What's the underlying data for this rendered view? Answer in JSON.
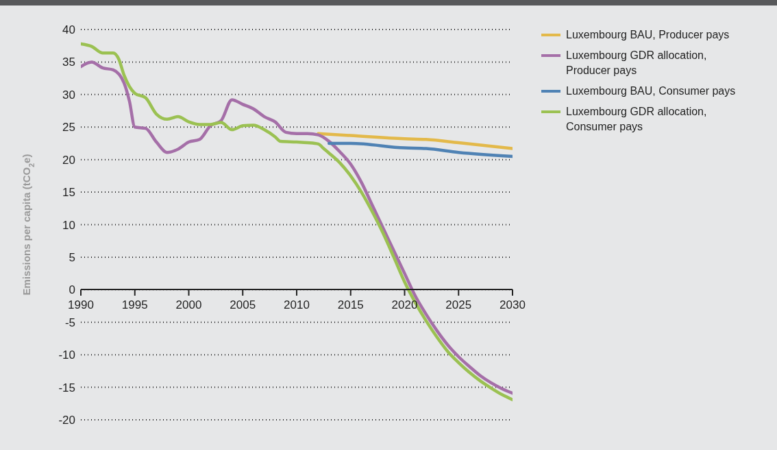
{
  "chart_data": {
    "type": "line",
    "ylabel": "Emissions per capita (tCO$_{2}$e)",
    "xlim": [
      1990,
      2030
    ],
    "xticks": [
      1990,
      1995,
      2000,
      2005,
      2010,
      2015,
      2020,
      2025,
      2030
    ],
    "ylim": [
      -20,
      40
    ],
    "yticks": [
      -20,
      -15,
      -10,
      -5,
      0,
      5,
      10,
      15,
      20,
      25,
      30,
      35,
      40
    ],
    "grid": "y",
    "line_style": "solid",
    "marker": "none",
    "legend": "top right",
    "series": [
      {
        "name": "Luxembourg BAU, Producer pays",
        "color": "#e3b94a",
        "x": [
          2012,
          2015,
          2020,
          2022,
          2025,
          2030
        ],
        "values": [
          24.0,
          23.7,
          23.2,
          23.1,
          22.6,
          21.7
        ]
      },
      {
        "name": "Luxembourg GDR allocation, Producer pays",
        "color": "#a56fa8",
        "x": [
          1990,
          1991,
          1992,
          1993,
          1994,
          1994.5,
          1995,
          1996,
          1997,
          1998,
          1999,
          2000,
          2001,
          2002,
          2003,
          2004,
          2005,
          2006,
          2007,
          2008,
          2009,
          2010,
          2011,
          2012,
          2013,
          2014,
          2015,
          2016,
          2017,
          2018,
          2019,
          2020,
          2021,
          2022,
          2023,
          2024,
          2025,
          2026,
          2027,
          2028,
          2029,
          2030
        ],
        "values": [
          34.3,
          35.0,
          34.1,
          33.8,
          31.8,
          29.0,
          25.0,
          24.8,
          22.7,
          21.1,
          21.6,
          22.7,
          23.1,
          25.2,
          26.0,
          29.2,
          28.5,
          27.8,
          26.6,
          25.8,
          24.2,
          24.0,
          24.0,
          23.8,
          22.8,
          21.2,
          19.3,
          16.5,
          13.0,
          9.5,
          6.0,
          2.5,
          -1.0,
          -3.8,
          -6.3,
          -8.5,
          -10.3,
          -11.8,
          -13.2,
          -14.3,
          -15.2,
          -15.9
        ]
      },
      {
        "name": "Luxembourg BAU, Consumer pays",
        "color": "#4f82b4",
        "x": [
          2013,
          2015,
          2020,
          2022,
          2025,
          2030
        ],
        "values": [
          22.5,
          22.5,
          21.8,
          21.7,
          21.1,
          20.5
        ]
      },
      {
        "name": "Luxembourg GDR allocation, Consumer pays",
        "color": "#9bc152",
        "x": [
          1990,
          1991,
          1992,
          1993,
          1993.5,
          1994,
          1995,
          1996,
          1997,
          1998,
          1999,
          2000,
          2001,
          2002,
          2003,
          2004,
          2005,
          2006,
          2007,
          2008,
          2008.5,
          2010,
          2011,
          2012,
          2012.5,
          2013,
          2014,
          2015,
          2016,
          2017,
          2018,
          2019,
          2020,
          2021,
          2022,
          2023,
          2024,
          2025,
          2026,
          2027,
          2028,
          2029,
          2030
        ],
        "values": [
          37.8,
          37.4,
          36.4,
          36.4,
          35.5,
          33.0,
          30.2,
          29.5,
          27.0,
          26.2,
          26.6,
          25.8,
          25.4,
          25.4,
          25.7,
          24.6,
          25.2,
          25.3,
          24.6,
          23.5,
          22.8,
          22.7,
          22.6,
          22.4,
          21.7,
          21.0,
          19.5,
          17.5,
          15.0,
          12.0,
          8.7,
          5.0,
          1.2,
          -2.0,
          -4.8,
          -7.3,
          -9.5,
          -11.2,
          -12.7,
          -14.0,
          -15.1,
          -16.1,
          -16.9
        ]
      }
    ]
  }
}
